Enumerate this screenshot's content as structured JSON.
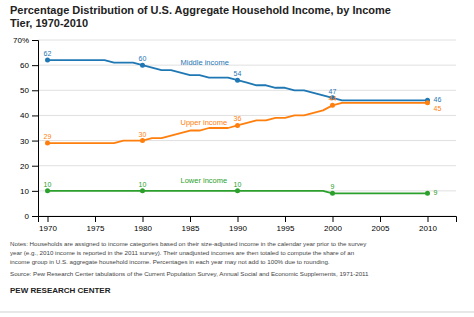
{
  "chart_data": {
    "type": "line",
    "title": "Percentage Distribution of U.S. Aggregate Household Income, by Income\nTier, 1970-2010",
    "x": [
      1970,
      1971,
      1972,
      1973,
      1974,
      1975,
      1976,
      1977,
      1978,
      1979,
      1980,
      1981,
      1982,
      1983,
      1984,
      1985,
      1986,
      1987,
      1988,
      1989,
      1990,
      1991,
      1992,
      1993,
      1994,
      1995,
      1996,
      1997,
      1998,
      1999,
      2000,
      2001,
      2002,
      2003,
      2004,
      2005,
      2006,
      2007,
      2008,
      2009,
      2010
    ],
    "series": [
      {
        "name": "Middle income",
        "values": [
          62,
          62,
          62,
          62,
          62,
          62,
          62,
          61,
          61,
          61,
          60,
          59,
          58,
          58,
          57,
          56,
          56,
          55,
          55,
          55,
          54,
          53,
          52,
          52,
          51,
          51,
          50,
          50,
          49,
          48,
          47,
          46,
          46,
          46,
          46,
          46,
          46,
          46,
          46,
          46,
          46
        ],
        "value_labels": [
          "62",
          null,
          null,
          null,
          null,
          null,
          null,
          null,
          null,
          null,
          "60",
          null,
          null,
          null,
          null,
          null,
          null,
          null,
          null,
          null,
          "54",
          null,
          null,
          null,
          null,
          null,
          null,
          null,
          null,
          null,
          "47",
          null,
          null,
          null,
          null,
          null,
          null,
          null,
          null,
          null,
          "46"
        ]
      },
      {
        "name": "Upper income",
        "values": [
          29,
          29,
          29,
          29,
          29,
          29,
          29,
          29,
          30,
          30,
          30,
          31,
          31,
          32,
          33,
          34,
          34,
          35,
          35,
          35,
          36,
          37,
          38,
          38,
          39,
          39,
          40,
          40,
          41,
          42,
          44,
          45,
          45,
          45,
          45,
          45,
          45,
          45,
          45,
          45,
          45
        ],
        "value_labels": [
          "29",
          null,
          null,
          null,
          null,
          null,
          null,
          null,
          null,
          null,
          "30",
          null,
          null,
          null,
          null,
          null,
          null,
          null,
          null,
          null,
          "36",
          null,
          null,
          null,
          null,
          null,
          null,
          null,
          null,
          null,
          "44",
          null,
          null,
          null,
          null,
          null,
          null,
          null,
          null,
          null,
          "45"
        ]
      },
      {
        "name": "Lower income",
        "values": [
          10,
          10,
          10,
          10,
          10,
          10,
          10,
          10,
          10,
          10,
          10,
          10,
          10,
          10,
          10,
          10,
          10,
          10,
          10,
          10,
          10,
          10,
          10,
          10,
          10,
          10,
          10,
          10,
          10,
          10,
          9,
          9,
          9,
          9,
          9,
          9,
          9,
          9,
          9,
          9,
          9
        ],
        "value_labels": [
          "10",
          null,
          null,
          null,
          null,
          null,
          null,
          null,
          null,
          null,
          "10",
          null,
          null,
          null,
          null,
          null,
          null,
          null,
          null,
          null,
          "10",
          null,
          null,
          null,
          null,
          null,
          null,
          null,
          null,
          null,
          "9",
          null,
          null,
          null,
          null,
          null,
          null,
          null,
          null,
          null,
          "9"
        ]
      }
    ],
    "xlim": [
      1969,
      2013
    ],
    "xticks": [
      1970,
      1975,
      1980,
      1985,
      1990,
      1995,
      2000,
      2005,
      2010
    ],
    "ylim": [
      0,
      70
    ],
    "yticks": [
      0,
      10,
      20,
      30,
      40,
      50,
      60,
      {
        "value": 70,
        "label": "70%"
      }
    ],
    "grid": true,
    "notes": [
      "Notes: Households are assigned to income categories based on their size-adjusted income in the calendar year prior to the survey",
      "year (e.g., 2010 income is reported in the 2011 survey). Their unadjusted incomes are then totaled to compute the share of an",
      "income group in U.S. aggregate household income. Percentages in each year may not add to 100% due to rounding."
    ],
    "source": "Source: Pew Research Center tabulations of the Current Population Survey, Annual Social and Economic Supplements, 1971-2011",
    "brand": "PEW RESEARCH CENTER"
  }
}
